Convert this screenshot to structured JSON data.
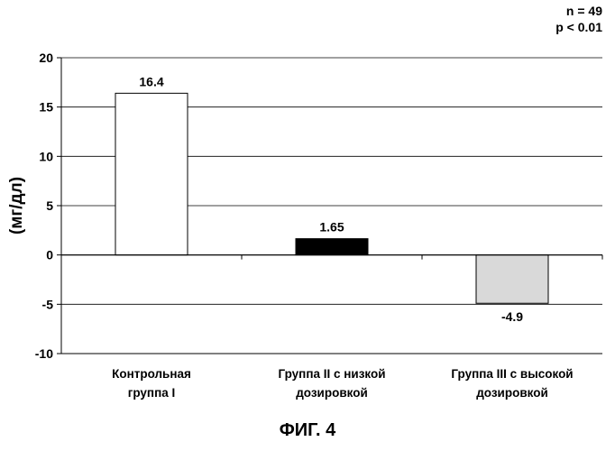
{
  "chart_data": {
    "type": "bar",
    "categories": [
      [
        "Контрольная",
        "группа I"
      ],
      [
        "Группа II с низкой",
        "дозировкой"
      ],
      [
        "Группа III с высокой",
        "дозировкой"
      ]
    ],
    "values": [
      16.4,
      1.65,
      -4.9
    ],
    "data_labels": [
      "16.4",
      "1.65",
      "-4.9"
    ],
    "bar_colors": [
      "#ffffff",
      "#000000",
      "#d9d9d9"
    ],
    "ylabel": "(мг/дл)",
    "ylim": [
      -10,
      20
    ],
    "yticks": [
      -10,
      -5,
      0,
      5,
      10,
      15,
      20
    ],
    "grid": true,
    "annotations": [
      "n = 49",
      "p < 0.01"
    ]
  },
  "figure_label": "ФИГ. 4"
}
